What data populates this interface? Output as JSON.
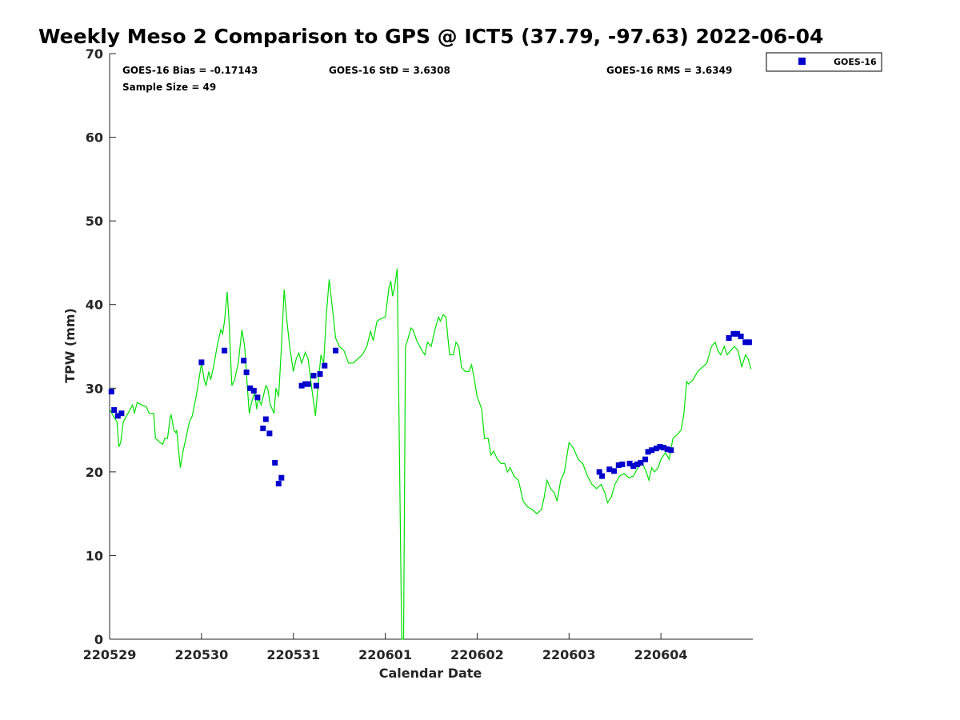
{
  "chart_data": {
    "type": "scatter",
    "title": "Weekly Meso 2 Comparison to GPS @ ICT5 (37.79, -97.63) 2022-06-04",
    "xlabel": "Calendar Date",
    "ylabel": "TPW (mm)",
    "x_ticks": [
      "220529",
      "220530",
      "220531",
      "220601",
      "220602",
      "220603",
      "220604"
    ],
    "y_ticks": [
      "0",
      "10",
      "20",
      "30",
      "40",
      "50",
      "60",
      "70"
    ],
    "xlim": [
      0,
      7
    ],
    "ylim": [
      0,
      70
    ],
    "x_unit": "days since 220529",
    "grid": false,
    "legend_position": "top-right",
    "stats": {
      "bias": "GOES-16 Bias = -0.17143",
      "std": "GOES-16 StD = 3.6308",
      "rms": "GOES-16 RMS = 3.6349",
      "sample": "Sample Size = 49"
    },
    "legend": [
      {
        "name": "GOES-16",
        "color": "#0000cc"
      }
    ],
    "series": [
      {
        "name": "GOES-16",
        "marker": "square",
        "color": "#0000cc",
        "points": [
          [
            0.02,
            29.6
          ],
          [
            0.05,
            27.4
          ],
          [
            0.09,
            26.7
          ],
          [
            0.13,
            27.0
          ],
          [
            1.0,
            33.1
          ],
          [
            1.25,
            34.5
          ],
          [
            1.46,
            33.3
          ],
          [
            1.49,
            31.9
          ],
          [
            1.53,
            30.0
          ],
          [
            1.57,
            29.7
          ],
          [
            1.61,
            28.9
          ],
          [
            1.67,
            25.2
          ],
          [
            1.7,
            26.3
          ],
          [
            1.74,
            24.6
          ],
          [
            1.8,
            21.1
          ],
          [
            1.84,
            18.6
          ],
          [
            1.87,
            19.3
          ],
          [
            2.09,
            30.3
          ],
          [
            2.13,
            30.5
          ],
          [
            2.16,
            30.5
          ],
          [
            2.22,
            31.5
          ],
          [
            2.25,
            30.3
          ],
          [
            2.29,
            31.7
          ],
          [
            2.34,
            32.7
          ],
          [
            2.46,
            34.5
          ],
          [
            5.33,
            20.0
          ],
          [
            5.36,
            19.5
          ],
          [
            5.44,
            20.3
          ],
          [
            5.49,
            20.1
          ],
          [
            5.54,
            20.8
          ],
          [
            5.58,
            20.9
          ],
          [
            5.66,
            21.0
          ],
          [
            5.7,
            20.7
          ],
          [
            5.74,
            20.9
          ],
          [
            5.78,
            21.1
          ],
          [
            5.83,
            21.5
          ],
          [
            5.86,
            22.4
          ],
          [
            5.9,
            22.6
          ],
          [
            5.95,
            22.8
          ],
          [
            5.99,
            23.0
          ],
          [
            6.03,
            22.9
          ],
          [
            6.07,
            22.7
          ],
          [
            6.11,
            22.6
          ],
          [
            6.74,
            36.0
          ],
          [
            6.79,
            36.5
          ],
          [
            6.83,
            36.5
          ],
          [
            6.87,
            36.2
          ],
          [
            6.92,
            35.5
          ],
          [
            6.96,
            35.5
          ]
        ]
      },
      {
        "name": "GPS",
        "marker": "line",
        "color": "#00e000",
        "points": [
          [
            0.0,
            27.5
          ],
          [
            0.05,
            26.5
          ],
          [
            0.08,
            26.0
          ],
          [
            0.1,
            23.0
          ],
          [
            0.12,
            23.5
          ],
          [
            0.15,
            26.0
          ],
          [
            0.2,
            27.0
          ],
          [
            0.25,
            28.0
          ],
          [
            0.27,
            27.0
          ],
          [
            0.3,
            28.3
          ],
          [
            0.35,
            28.0
          ],
          [
            0.4,
            27.8
          ],
          [
            0.43,
            27.0
          ],
          [
            0.48,
            27.0
          ],
          [
            0.5,
            24.0
          ],
          [
            0.55,
            23.5
          ],
          [
            0.58,
            23.3
          ],
          [
            0.6,
            24.0
          ],
          [
            0.63,
            24.0
          ],
          [
            0.66,
            26.5
          ],
          [
            0.67,
            26.8
          ],
          [
            0.7,
            25.0
          ],
          [
            0.72,
            24.7
          ],
          [
            0.73,
            25.0
          ],
          [
            0.77,
            20.5
          ],
          [
            0.8,
            22.5
          ],
          [
            0.83,
            24.0
          ],
          [
            0.87,
            26.0
          ],
          [
            0.9,
            26.7
          ],
          [
            0.95,
            29.5
          ],
          [
            1.0,
            33.0
          ],
          [
            1.03,
            31.0
          ],
          [
            1.05,
            30.3
          ],
          [
            1.08,
            32.0
          ],
          [
            1.1,
            31.0
          ],
          [
            1.13,
            32.5
          ],
          [
            1.17,
            35.0
          ],
          [
            1.21,
            37.0
          ],
          [
            1.23,
            36.5
          ],
          [
            1.25,
            38.0
          ],
          [
            1.28,
            41.5
          ],
          [
            1.3,
            38.0
          ],
          [
            1.33,
            30.3
          ],
          [
            1.36,
            31.0
          ],
          [
            1.4,
            33.0
          ],
          [
            1.44,
            37.0
          ],
          [
            1.47,
            35.0
          ],
          [
            1.5,
            30.0
          ],
          [
            1.52,
            27.0
          ],
          [
            1.55,
            28.5
          ],
          [
            1.58,
            29.5
          ],
          [
            1.6,
            27.5
          ],
          [
            1.62,
            28.8
          ],
          [
            1.65,
            28.0
          ],
          [
            1.7,
            30.3
          ],
          [
            1.72,
            30.0
          ],
          [
            1.75,
            28.0
          ],
          [
            1.79,
            27.0
          ],
          [
            1.81,
            30.0
          ],
          [
            1.84,
            29.0
          ],
          [
            1.87,
            35.0
          ],
          [
            1.9,
            41.8
          ],
          [
            1.93,
            38.0
          ],
          [
            1.96,
            35.0
          ],
          [
            2.0,
            32.0
          ],
          [
            2.03,
            33.5
          ],
          [
            2.06,
            34.2
          ],
          [
            2.09,
            33.0
          ],
          [
            2.13,
            34.3
          ],
          [
            2.16,
            33.5
          ],
          [
            2.2,
            30.0
          ],
          [
            2.24,
            26.7
          ],
          [
            2.27,
            30.5
          ],
          [
            2.3,
            34.0
          ],
          [
            2.33,
            33.0
          ],
          [
            2.36,
            39.0
          ],
          [
            2.39,
            43.0
          ],
          [
            2.42,
            40.0
          ],
          [
            2.46,
            36.0
          ],
          [
            2.5,
            35.0
          ],
          [
            2.55,
            34.5
          ],
          [
            2.6,
            33.0
          ],
          [
            2.65,
            33.0
          ],
          [
            2.7,
            33.5
          ],
          [
            2.75,
            34.0
          ],
          [
            2.8,
            35.0
          ],
          [
            2.84,
            36.8
          ],
          [
            2.87,
            35.7
          ],
          [
            2.91,
            38.0
          ],
          [
            2.95,
            38.3
          ],
          [
            3.0,
            38.5
          ],
          [
            3.04,
            42.0
          ],
          [
            3.06,
            42.8
          ],
          [
            3.08,
            41.0
          ],
          [
            3.1,
            42.0
          ],
          [
            3.13,
            44.3
          ],
          [
            3.14,
            35.0
          ],
          [
            3.17,
            8.0
          ],
          [
            3.18,
            0.0
          ],
          [
            3.2,
            0.0
          ],
          [
            3.22,
            35.0
          ],
          [
            3.25,
            36.0
          ],
          [
            3.28,
            37.2
          ],
          [
            3.3,
            37.0
          ],
          [
            3.35,
            35.5
          ],
          [
            3.4,
            34.5
          ],
          [
            3.43,
            34.0
          ],
          [
            3.46,
            35.5
          ],
          [
            3.5,
            35.0
          ],
          [
            3.54,
            37.0
          ],
          [
            3.58,
            38.5
          ],
          [
            3.6,
            38.0
          ],
          [
            3.63,
            38.8
          ],
          [
            3.66,
            38.5
          ],
          [
            3.7,
            34.0
          ],
          [
            3.74,
            34.0
          ],
          [
            3.77,
            35.5
          ],
          [
            3.8,
            35.0
          ],
          [
            3.83,
            32.5
          ],
          [
            3.87,
            32.0
          ],
          [
            3.91,
            32.0
          ],
          [
            3.94,
            32.8
          ],
          [
            3.97,
            31.0
          ],
          [
            4.0,
            29.0
          ],
          [
            4.05,
            27.5
          ],
          [
            4.08,
            24.0
          ],
          [
            4.12,
            24.0
          ],
          [
            4.15,
            22.0
          ],
          [
            4.18,
            22.5
          ],
          [
            4.22,
            21.5
          ],
          [
            4.26,
            21.0
          ],
          [
            4.3,
            21.0
          ],
          [
            4.33,
            20.0
          ],
          [
            4.36,
            20.5
          ],
          [
            4.4,
            19.5
          ],
          [
            4.45,
            19.0
          ],
          [
            4.5,
            16.5
          ],
          [
            4.55,
            15.8
          ],
          [
            4.6,
            15.5
          ],
          [
            4.65,
            15.0
          ],
          [
            4.7,
            15.5
          ],
          [
            4.73,
            17.0
          ],
          [
            4.76,
            19.0
          ],
          [
            4.8,
            18.0
          ],
          [
            4.84,
            17.5
          ],
          [
            4.87,
            16.5
          ],
          [
            4.91,
            19.0
          ],
          [
            4.95,
            20.0
          ],
          [
            5.0,
            23.5
          ],
          [
            5.05,
            22.8
          ],
          [
            5.1,
            21.5
          ],
          [
            5.15,
            21.0
          ],
          [
            5.2,
            19.5
          ],
          [
            5.25,
            18.5
          ],
          [
            5.3,
            18.0
          ],
          [
            5.35,
            18.5
          ],
          [
            5.39,
            17.5
          ],
          [
            5.42,
            16.3
          ],
          [
            5.46,
            17.0
          ],
          [
            5.5,
            18.5
          ],
          [
            5.55,
            19.5
          ],
          [
            5.6,
            19.8
          ],
          [
            5.65,
            19.3
          ],
          [
            5.7,
            19.5
          ],
          [
            5.75,
            20.5
          ],
          [
            5.8,
            21.0
          ],
          [
            5.84,
            20.0
          ],
          [
            5.87,
            19.0
          ],
          [
            5.9,
            20.5
          ],
          [
            5.93,
            20.0
          ],
          [
            5.97,
            20.5
          ],
          [
            6.0,
            21.5
          ],
          [
            6.05,
            22.3
          ],
          [
            6.09,
            21.5
          ],
          [
            6.13,
            24.0
          ],
          [
            6.18,
            24.5
          ],
          [
            6.22,
            25.0
          ],
          [
            6.25,
            27.0
          ],
          [
            6.28,
            30.8
          ],
          [
            6.3,
            30.5
          ],
          [
            6.35,
            31.0
          ],
          [
            6.4,
            32.0
          ],
          [
            6.45,
            32.5
          ],
          [
            6.5,
            33.0
          ],
          [
            6.55,
            35.0
          ],
          [
            6.59,
            35.5
          ],
          [
            6.62,
            34.5
          ],
          [
            6.65,
            34.0
          ],
          [
            6.69,
            35.0
          ],
          [
            6.72,
            34.0
          ],
          [
            6.76,
            34.5
          ],
          [
            6.8,
            35.0
          ],
          [
            6.84,
            34.5
          ],
          [
            6.88,
            32.5
          ],
          [
            6.92,
            34.0
          ],
          [
            6.95,
            33.5
          ],
          [
            6.98,
            32.3
          ]
        ]
      }
    ]
  }
}
